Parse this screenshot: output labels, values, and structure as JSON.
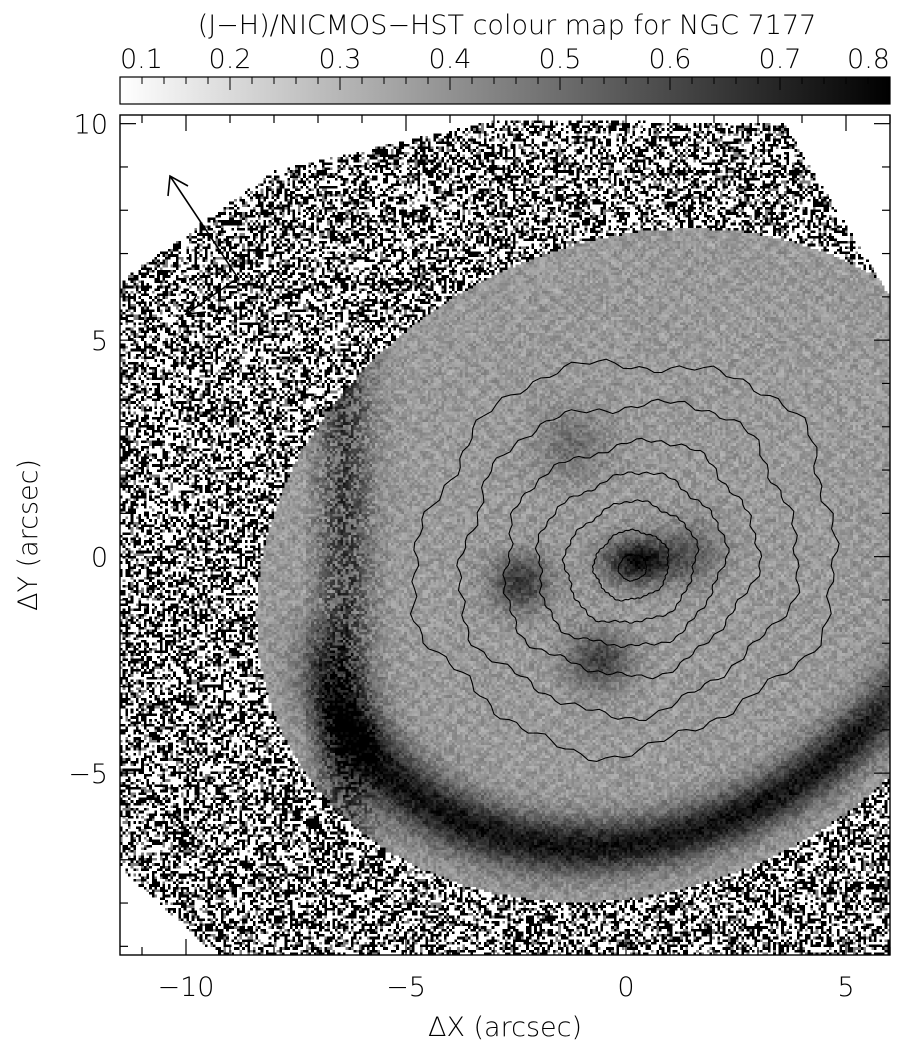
{
  "chart_data": {
    "type": "heatmap",
    "title": "(J−H)/NICMOS−HST colour map for NGC 7177",
    "xlabel": "ΔX (arcsec)",
    "ylabel": "ΔY (arcsec)",
    "xlim": [
      -11.5,
      6.0
    ],
    "ylim": [
      -9.2,
      10.2
    ],
    "x_ticks": [
      -10,
      -5,
      0,
      5
    ],
    "x_tick_labels": [
      "−10",
      "−5",
      "0",
      "5"
    ],
    "y_ticks": [
      -5,
      0,
      5,
      10
    ],
    "y_tick_labels": [
      "−5",
      "0",
      "5",
      "10"
    ],
    "colorbar": {
      "range": [
        0.1,
        0.8
      ],
      "colormap": "white-to-black",
      "ticks": [
        0.1,
        0.2,
        0.3,
        0.4,
        0.5,
        0.6,
        0.7,
        0.8
      ],
      "tick_labels": [
        "0.1",
        "0.2",
        "0.3",
        "0.4",
        "0.5",
        "0.6",
        "0.7",
        "0.8"
      ],
      "placement": "top"
    },
    "features": {
      "nucleus_center": [
        0.2,
        -0.2
      ],
      "nucleus_colour": 0.78,
      "dust_lane_colour": 0.75,
      "disk_colour": 0.38,
      "contour_radii_arcsec": [
        0.3,
        0.8,
        1.4,
        2.0,
        2.7,
        3.6,
        4.5
      ]
    },
    "annotations": {
      "compass": "north arrow and east arrow, upper-left"
    }
  }
}
